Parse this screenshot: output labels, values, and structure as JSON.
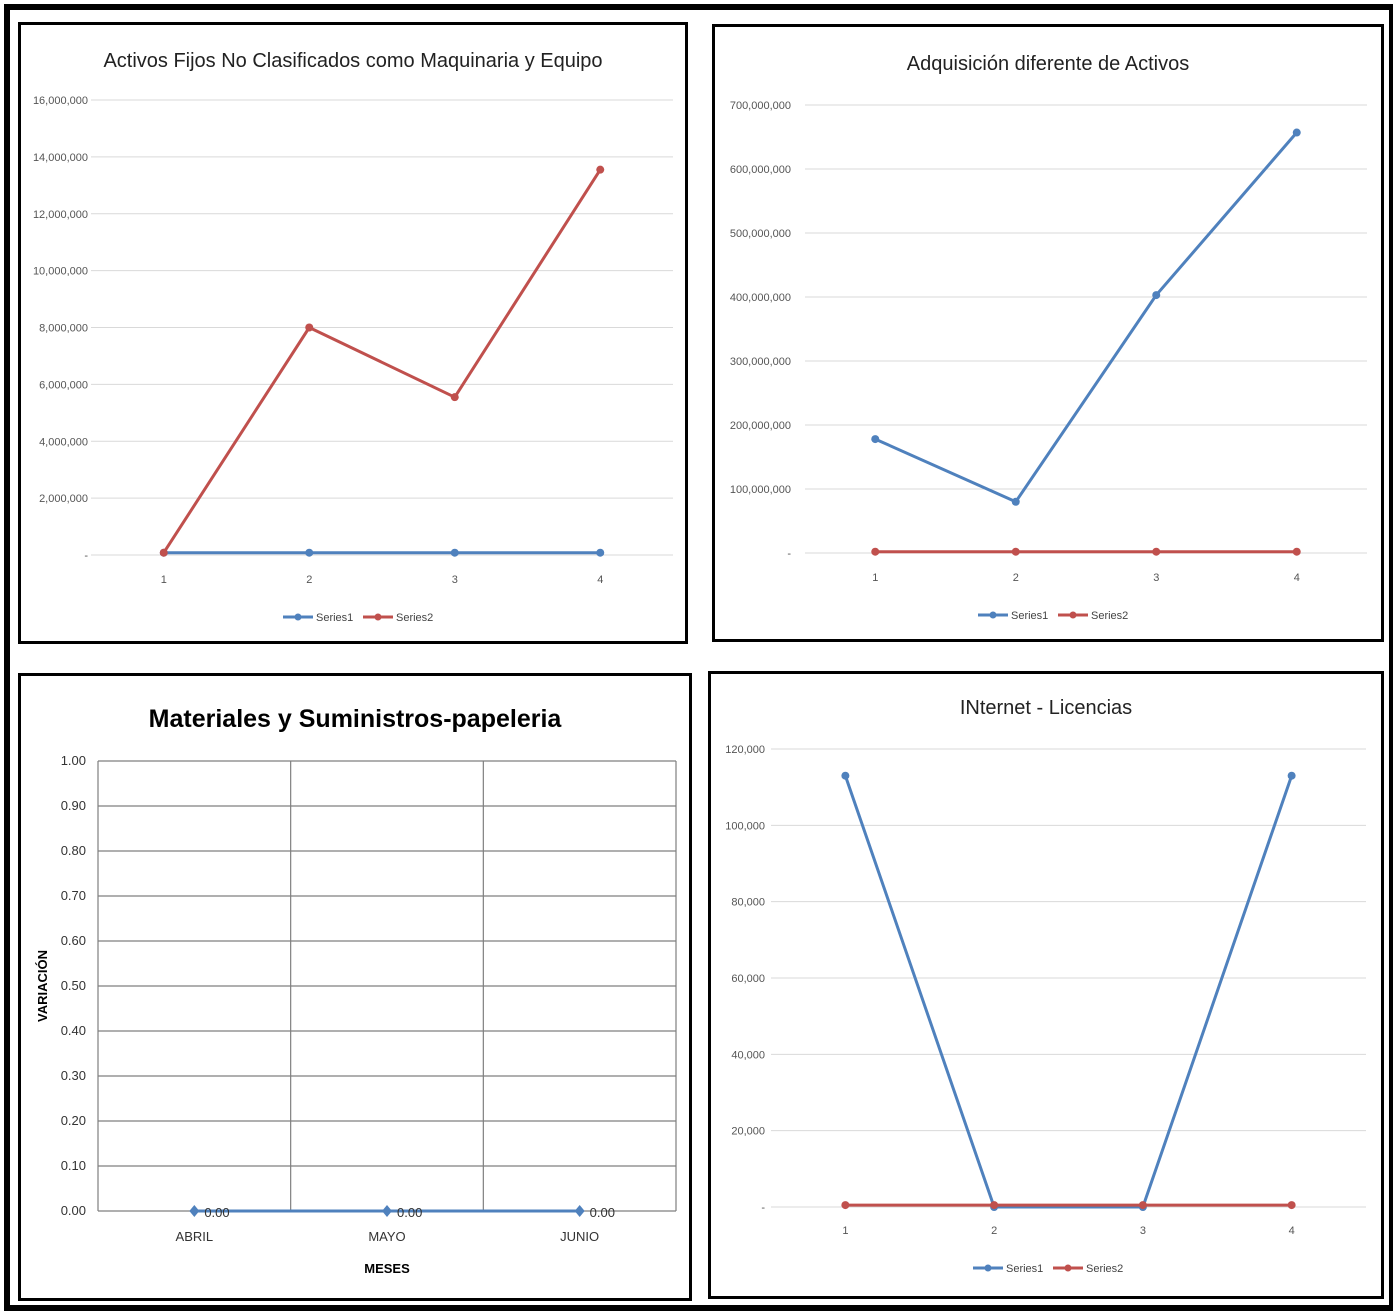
{
  "charts": [
    {
      "id": "p1",
      "title": "Activos Fijos No Clasificados como Maquinaria y Equipo",
      "chart_data": {
        "type": "line",
        "categories": [
          "1",
          "2",
          "3",
          "4"
        ],
        "series": [
          {
            "name": "Series1",
            "color": "#4f81bd",
            "values": [
              80000,
              80000,
              80000,
              80000
            ]
          },
          {
            "name": "Series2",
            "color": "#c0504d",
            "values": [
              80000,
              8000000,
              5550000,
              13550000
            ]
          }
        ],
        "ylim": [
          0,
          16000000
        ],
        "yticks": [
          "-",
          "2,000,000",
          "4,000,000",
          "6,000,000",
          "8,000,000",
          "10,000,000",
          "12,000,000",
          "14,000,000",
          "16,000,000"
        ],
        "legend": "bottom",
        "grid": true
      }
    },
    {
      "id": "p2",
      "title": "Adquisición diferente de Activos",
      "chart_data": {
        "type": "line",
        "categories": [
          "1",
          "2",
          "3",
          "4"
        ],
        "series": [
          {
            "name": "Series1",
            "color": "#4f81bd",
            "values": [
              178000000,
              80000000,
              403000000,
              657000000
            ]
          },
          {
            "name": "Series2",
            "color": "#c0504d",
            "values": [
              2000000,
              2000000,
              2000000,
              2000000
            ]
          }
        ],
        "ylim": [
          0,
          700000000
        ],
        "yticks": [
          "-",
          "100,000,000",
          "200,000,000",
          "300,000,000",
          "400,000,000",
          "500,000,000",
          "600,000,000",
          "700,000,000"
        ],
        "legend": "bottom",
        "grid": true
      }
    },
    {
      "id": "p3",
      "title": "Materiales y Suministros-papeleria",
      "chart_data": {
        "type": "line",
        "categories": [
          "ABRIL",
          "MAYO",
          "JUNIO"
        ],
        "series": [
          {
            "color": "#4f81bd",
            "values": [
              0,
              0,
              0
            ],
            "labels": [
              "0.00",
              "0.00",
              "0.00"
            ]
          }
        ],
        "ylim": [
          0,
          1
        ],
        "yticks": [
          "0.00",
          "0.10",
          "0.20",
          "0.30",
          "0.40",
          "0.50",
          "0.60",
          "0.70",
          "0.80",
          "0.90",
          "1.00"
        ],
        "xlabel": "MESES",
        "ylabel": "VARIACIÓN",
        "grid": true
      }
    },
    {
      "id": "p4",
      "title": "INternet - Licencias",
      "chart_data": {
        "type": "line",
        "categories": [
          "1",
          "2",
          "3",
          "4"
        ],
        "series": [
          {
            "name": "Series1",
            "color": "#4f81bd",
            "values": [
              113000,
              0,
              0,
              113000
            ]
          },
          {
            "name": "Series2",
            "color": "#c0504d",
            "values": [
              500,
              500,
              500,
              500
            ]
          }
        ],
        "ylim": [
          0,
          120000
        ],
        "yticks": [
          "-",
          "20,000",
          "40,000",
          "60,000",
          "80,000",
          "100,000",
          "120,000"
        ],
        "legend": "bottom",
        "grid": true
      }
    }
  ]
}
